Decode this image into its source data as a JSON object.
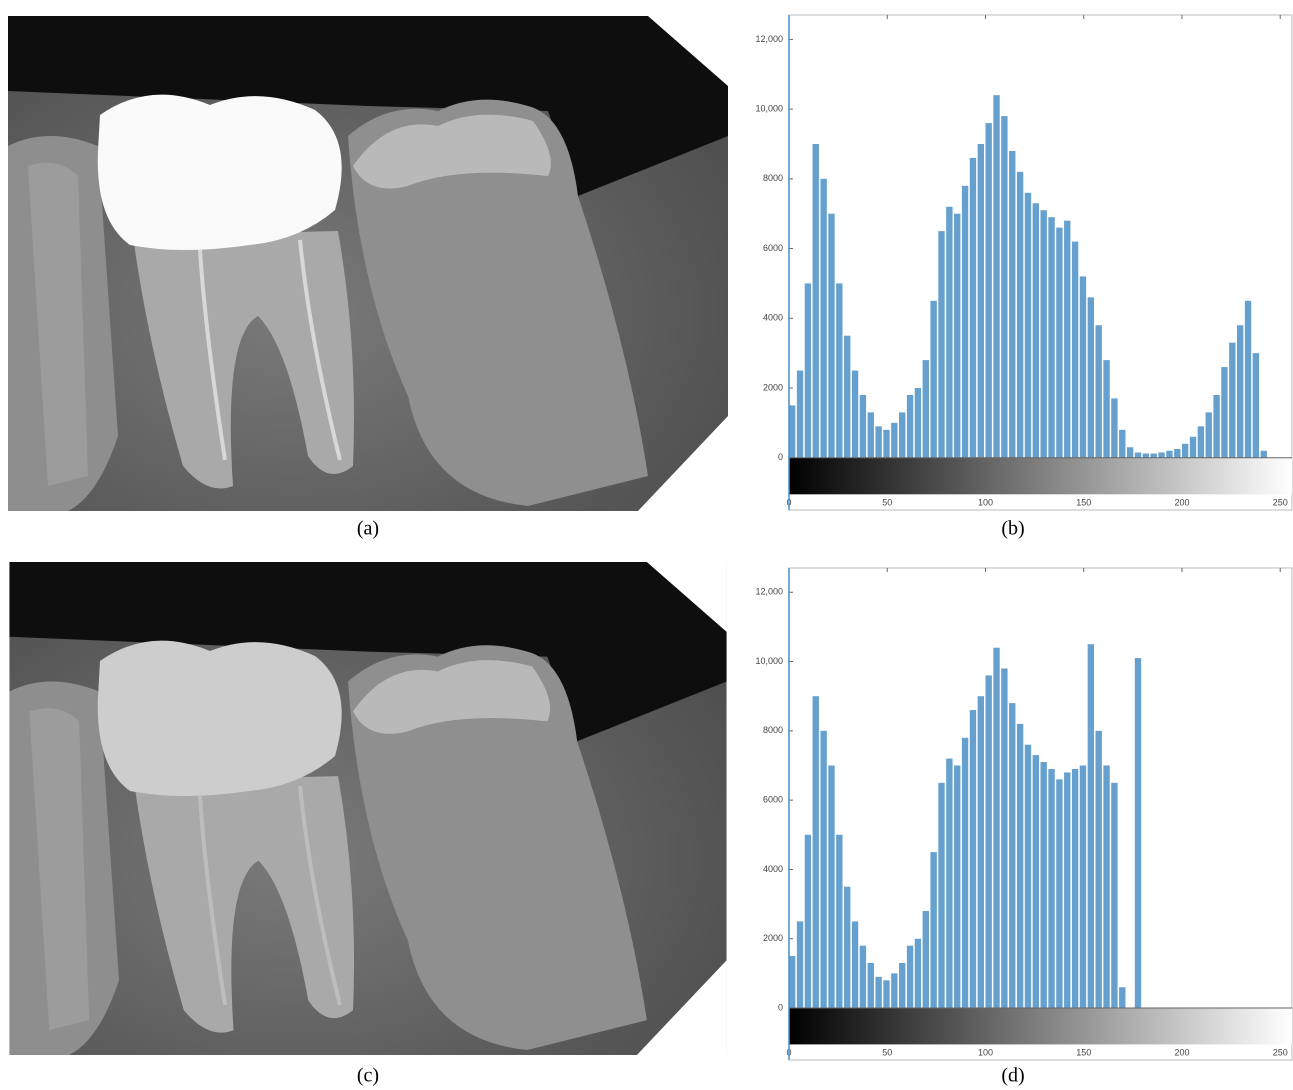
{
  "captions": [
    "(a)",
    "(b)",
    "(c)",
    "(d)"
  ],
  "chart_data": [
    {
      "type": "histogram",
      "color": "#4a8fc6",
      "bins": [
        0,
        4,
        8,
        12,
        16,
        20,
        24,
        28,
        32,
        36,
        40,
        44,
        48,
        52,
        56,
        60,
        64,
        68,
        72,
        76,
        80,
        84,
        88,
        92,
        96,
        100,
        104,
        108,
        112,
        116,
        120,
        124,
        128,
        132,
        136,
        140,
        144,
        148,
        152,
        156,
        160,
        164,
        168,
        172,
        176,
        180,
        184,
        188,
        192,
        196,
        200,
        204,
        208,
        212,
        216,
        220,
        224,
        228,
        232,
        236,
        240,
        244,
        248,
        252,
        256
      ],
      "counts": [
        1500,
        2500,
        5000,
        9000,
        8000,
        7000,
        5000,
        3500,
        2500,
        1800,
        1300,
        900,
        800,
        1000,
        1300,
        1800,
        2000,
        2800,
        4500,
        6500,
        7200,
        7000,
        7800,
        8600,
        9000,
        9600,
        10400,
        9800,
        8800,
        8200,
        7600,
        7300,
        7100,
        6900,
        6600,
        6800,
        6200,
        5200,
        4600,
        3800,
        2800,
        1700,
        800,
        300,
        150,
        120,
        120,
        150,
        200,
        250,
        400,
        600,
        900,
        1300,
        1800,
        2600,
        3300,
        3800,
        4500,
        3000,
        200,
        0,
        0,
        0
      ],
      "xlim": [
        0,
        256
      ],
      "ylim": [
        -1500,
        12700
      ],
      "xticks": [
        0,
        50,
        100,
        150,
        200,
        250
      ],
      "yticks": [
        0,
        2000,
        4000,
        6000,
        8000,
        {
          "value": 10000,
          "label": "10,000"
        },
        {
          "value": 12000,
          "label": "12,000"
        }
      ]
    },
    {
      "type": "histogram",
      "color": "#4a8fc6",
      "bins": [
        0,
        4,
        8,
        12,
        16,
        20,
        24,
        28,
        32,
        36,
        40,
        44,
        48,
        52,
        56,
        60,
        64,
        68,
        72,
        76,
        80,
        84,
        88,
        92,
        96,
        100,
        104,
        108,
        112,
        116,
        120,
        124,
        128,
        132,
        136,
        140,
        144,
        148,
        152,
        156,
        160,
        164,
        168,
        172,
        176,
        180,
        184,
        188,
        192,
        196,
        200,
        204,
        208,
        212,
        216,
        220,
        224,
        228,
        232,
        236,
        240,
        244,
        248,
        252,
        256
      ],
      "counts": [
        1500,
        2500,
        5000,
        9000,
        8000,
        7000,
        5000,
        3500,
        2500,
        1800,
        1300,
        900,
        800,
        1000,
        1300,
        1800,
        2000,
        2800,
        4500,
        6500,
        7200,
        7000,
        7800,
        8600,
        9000,
        9600,
        10400,
        9800,
        8800,
        8200,
        7600,
        7300,
        7100,
        6900,
        6600,
        6800,
        6900,
        7000,
        10500,
        8000,
        7000,
        6500,
        600,
        0,
        10100,
        0,
        0,
        0,
        0,
        0,
        0,
        0,
        0,
        0,
        0,
        0,
        0,
        0,
        0,
        0,
        0,
        0,
        0,
        0
      ],
      "xlim": [
        0,
        256
      ],
      "ylim": [
        -1500,
        12700
      ],
      "xticks": [
        0,
        50,
        100,
        150,
        200,
        250
      ],
      "yticks": [
        0,
        2000,
        4000,
        6000,
        8000,
        {
          "value": 10000,
          "label": "10,000"
        },
        {
          "value": 12000,
          "label": "12,000"
        }
      ]
    }
  ]
}
